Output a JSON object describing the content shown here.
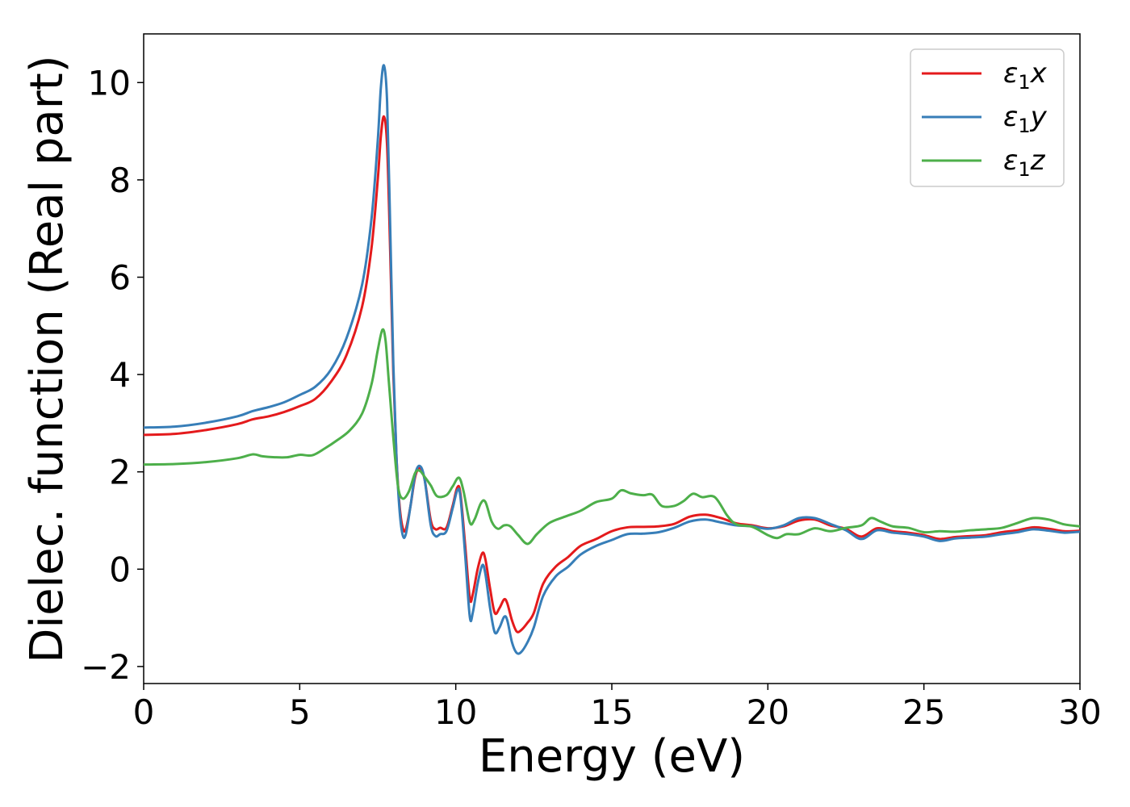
{
  "chart_data": {
    "type": "line",
    "xlabel": "Energy (eV)",
    "ylabel": "Dielec. function (Real part)",
    "xlim": [
      0,
      30
    ],
    "ylim": [
      -2.35,
      11.0
    ],
    "xticks": [
      0,
      5,
      10,
      15,
      20,
      25,
      30
    ],
    "xtick_labels": [
      "0",
      "5",
      "10",
      "15",
      "20",
      "25",
      "30"
    ],
    "yticks": [
      -2,
      0,
      2,
      4,
      6,
      8,
      10
    ],
    "ytick_labels": [
      "−2",
      "0",
      "2",
      "4",
      "6",
      "8",
      "10"
    ],
    "grid": false,
    "legend_position": "top-right",
    "series": [
      {
        "name": "ε₁x",
        "legend_main": "ε",
        "legend_sub": "1",
        "legend_tail": "x",
        "color": "#e41a1c",
        "points": [
          [
            0,
            2.76
          ],
          [
            1,
            2.78
          ],
          [
            2,
            2.86
          ],
          [
            3,
            2.98
          ],
          [
            3.5,
            3.08
          ],
          [
            4,
            3.14
          ],
          [
            4.5,
            3.23
          ],
          [
            5,
            3.35
          ],
          [
            5.5,
            3.5
          ],
          [
            6,
            3.85
          ],
          [
            6.5,
            4.4
          ],
          [
            7,
            5.4
          ],
          [
            7.3,
            6.6
          ],
          [
            7.5,
            8.0
          ],
          [
            7.6,
            8.9
          ],
          [
            7.7,
            9.3
          ],
          [
            7.8,
            8.7
          ],
          [
            7.9,
            6.5
          ],
          [
            8.0,
            4.0
          ],
          [
            8.1,
            2.3
          ],
          [
            8.2,
            1.3
          ],
          [
            8.3,
            0.85
          ],
          [
            8.4,
            0.82
          ],
          [
            8.55,
            1.3
          ],
          [
            8.7,
            1.9
          ],
          [
            8.85,
            2.08
          ],
          [
            9.0,
            1.85
          ],
          [
            9.2,
            1.0
          ],
          [
            9.35,
            0.82
          ],
          [
            9.5,
            0.85
          ],
          [
            9.7,
            0.85
          ],
          [
            9.9,
            1.3
          ],
          [
            10.05,
            1.68
          ],
          [
            10.15,
            1.55
          ],
          [
            10.3,
            0.5
          ],
          [
            10.45,
            -0.6
          ],
          [
            10.55,
            -0.5
          ],
          [
            10.7,
            0.0
          ],
          [
            10.85,
            0.33
          ],
          [
            10.95,
            0.2
          ],
          [
            11.1,
            -0.4
          ],
          [
            11.25,
            -0.9
          ],
          [
            11.4,
            -0.8
          ],
          [
            11.55,
            -0.62
          ],
          [
            11.65,
            -0.7
          ],
          [
            11.8,
            -1.05
          ],
          [
            11.95,
            -1.28
          ],
          [
            12.1,
            -1.25
          ],
          [
            12.3,
            -1.1
          ],
          [
            12.5,
            -0.9
          ],
          [
            12.8,
            -0.3
          ],
          [
            13.2,
            0.05
          ],
          [
            13.6,
            0.25
          ],
          [
            14.0,
            0.48
          ],
          [
            14.5,
            0.62
          ],
          [
            15.0,
            0.78
          ],
          [
            15.5,
            0.86
          ],
          [
            16.0,
            0.87
          ],
          [
            16.5,
            0.88
          ],
          [
            17.0,
            0.93
          ],
          [
            17.5,
            1.08
          ],
          [
            18.0,
            1.12
          ],
          [
            18.5,
            1.05
          ],
          [
            19.0,
            0.94
          ],
          [
            19.5,
            0.9
          ],
          [
            20.0,
            0.84
          ],
          [
            20.5,
            0.88
          ],
          [
            21.0,
            1.0
          ],
          [
            21.5,
            1.02
          ],
          [
            22.0,
            0.9
          ],
          [
            22.5,
            0.83
          ],
          [
            23.0,
            0.67
          ],
          [
            23.5,
            0.84
          ],
          [
            24.0,
            0.78
          ],
          [
            24.5,
            0.75
          ],
          [
            25.0,
            0.7
          ],
          [
            25.5,
            0.62
          ],
          [
            26.0,
            0.66
          ],
          [
            26.5,
            0.68
          ],
          [
            27.0,
            0.7
          ],
          [
            27.5,
            0.76
          ],
          [
            28.0,
            0.8
          ],
          [
            28.5,
            0.86
          ],
          [
            29.0,
            0.83
          ],
          [
            29.5,
            0.78
          ],
          [
            30.0,
            0.79
          ]
        ]
      },
      {
        "name": "ε₁y",
        "legend_main": "ε",
        "legend_sub": "1",
        "legend_tail": "y",
        "color": "#377eb8",
        "points": [
          [
            0,
            2.91
          ],
          [
            1,
            2.93
          ],
          [
            2,
            3.01
          ],
          [
            3,
            3.14
          ],
          [
            3.5,
            3.25
          ],
          [
            4,
            3.33
          ],
          [
            4.5,
            3.43
          ],
          [
            5,
            3.58
          ],
          [
            5.5,
            3.75
          ],
          [
            6,
            4.1
          ],
          [
            6.5,
            4.75
          ],
          [
            7,
            5.85
          ],
          [
            7.3,
            7.2
          ],
          [
            7.5,
            8.8
          ],
          [
            7.6,
            9.9
          ],
          [
            7.7,
            10.35
          ],
          [
            7.8,
            9.6
          ],
          [
            7.9,
            7.0
          ],
          [
            8.0,
            4.2
          ],
          [
            8.1,
            2.3
          ],
          [
            8.2,
            1.2
          ],
          [
            8.3,
            0.7
          ],
          [
            8.4,
            0.72
          ],
          [
            8.55,
            1.3
          ],
          [
            8.7,
            1.95
          ],
          [
            8.85,
            2.12
          ],
          [
            9.0,
            1.85
          ],
          [
            9.2,
            0.9
          ],
          [
            9.35,
            0.68
          ],
          [
            9.5,
            0.72
          ],
          [
            9.7,
            0.78
          ],
          [
            9.9,
            1.25
          ],
          [
            10.05,
            1.62
          ],
          [
            10.15,
            1.48
          ],
          [
            10.3,
            0.3
          ],
          [
            10.45,
            -0.98
          ],
          [
            10.55,
            -0.88
          ],
          [
            10.7,
            -0.3
          ],
          [
            10.85,
            0.08
          ],
          [
            10.95,
            -0.1
          ],
          [
            11.1,
            -0.8
          ],
          [
            11.25,
            -1.3
          ],
          [
            11.4,
            -1.2
          ],
          [
            11.55,
            -0.98
          ],
          [
            11.65,
            -1.05
          ],
          [
            11.8,
            -1.5
          ],
          [
            11.95,
            -1.72
          ],
          [
            12.1,
            -1.7
          ],
          [
            12.3,
            -1.5
          ],
          [
            12.5,
            -1.2
          ],
          [
            12.8,
            -0.55
          ],
          [
            13.2,
            -0.15
          ],
          [
            13.6,
            0.05
          ],
          [
            14.0,
            0.3
          ],
          [
            14.5,
            0.48
          ],
          [
            15.0,
            0.6
          ],
          [
            15.5,
            0.72
          ],
          [
            16.0,
            0.73
          ],
          [
            16.5,
            0.76
          ],
          [
            17.0,
            0.85
          ],
          [
            17.5,
            0.98
          ],
          [
            18.0,
            1.02
          ],
          [
            18.5,
            0.96
          ],
          [
            19.0,
            0.9
          ],
          [
            19.5,
            0.88
          ],
          [
            20.0,
            0.83
          ],
          [
            20.5,
            0.9
          ],
          [
            21.0,
            1.05
          ],
          [
            21.5,
            1.05
          ],
          [
            22.0,
            0.93
          ],
          [
            22.5,
            0.8
          ],
          [
            23.0,
            0.62
          ],
          [
            23.5,
            0.8
          ],
          [
            24.0,
            0.75
          ],
          [
            24.5,
            0.72
          ],
          [
            25.0,
            0.67
          ],
          [
            25.5,
            0.58
          ],
          [
            26.0,
            0.63
          ],
          [
            26.5,
            0.65
          ],
          [
            27.0,
            0.67
          ],
          [
            27.5,
            0.72
          ],
          [
            28.0,
            0.76
          ],
          [
            28.5,
            0.82
          ],
          [
            29.0,
            0.79
          ],
          [
            29.5,
            0.75
          ],
          [
            30.0,
            0.77
          ]
        ]
      },
      {
        "name": "ε₁z",
        "legend_main": "ε",
        "legend_sub": "1",
        "legend_tail": "z",
        "color": "#4daf4a",
        "points": [
          [
            0,
            2.15
          ],
          [
            1,
            2.16
          ],
          [
            2,
            2.2
          ],
          [
            3,
            2.28
          ],
          [
            3.5,
            2.36
          ],
          [
            3.8,
            2.32
          ],
          [
            4.2,
            2.3
          ],
          [
            4.6,
            2.3
          ],
          [
            5.0,
            2.35
          ],
          [
            5.4,
            2.34
          ],
          [
            5.8,
            2.48
          ],
          [
            6.2,
            2.65
          ],
          [
            6.6,
            2.85
          ],
          [
            7.0,
            3.2
          ],
          [
            7.3,
            3.8
          ],
          [
            7.5,
            4.5
          ],
          [
            7.65,
            4.92
          ],
          [
            7.75,
            4.7
          ],
          [
            7.85,
            3.9
          ],
          [
            8.0,
            2.7
          ],
          [
            8.15,
            1.7
          ],
          [
            8.3,
            1.45
          ],
          [
            8.5,
            1.6
          ],
          [
            8.7,
            1.98
          ],
          [
            8.85,
            2.02
          ],
          [
            9.0,
            1.9
          ],
          [
            9.2,
            1.72
          ],
          [
            9.4,
            1.5
          ],
          [
            9.7,
            1.52
          ],
          [
            9.9,
            1.7
          ],
          [
            10.1,
            1.88
          ],
          [
            10.25,
            1.6
          ],
          [
            10.45,
            0.96
          ],
          [
            10.6,
            1.02
          ],
          [
            10.8,
            1.35
          ],
          [
            10.95,
            1.38
          ],
          [
            11.15,
            0.98
          ],
          [
            11.35,
            0.83
          ],
          [
            11.55,
            0.9
          ],
          [
            11.75,
            0.88
          ],
          [
            12.0,
            0.7
          ],
          [
            12.3,
            0.52
          ],
          [
            12.6,
            0.72
          ],
          [
            13.0,
            0.95
          ],
          [
            13.5,
            1.08
          ],
          [
            14.0,
            1.2
          ],
          [
            14.5,
            1.38
          ],
          [
            15.0,
            1.45
          ],
          [
            15.3,
            1.62
          ],
          [
            15.6,
            1.56
          ],
          [
            16.0,
            1.52
          ],
          [
            16.3,
            1.53
          ],
          [
            16.6,
            1.3
          ],
          [
            17.0,
            1.3
          ],
          [
            17.3,
            1.4
          ],
          [
            17.6,
            1.55
          ],
          [
            17.9,
            1.48
          ],
          [
            18.3,
            1.48
          ],
          [
            18.7,
            1.1
          ],
          [
            19.0,
            0.92
          ],
          [
            19.5,
            0.87
          ],
          [
            20.0,
            0.7
          ],
          [
            20.3,
            0.64
          ],
          [
            20.6,
            0.72
          ],
          [
            21.0,
            0.72
          ],
          [
            21.5,
            0.84
          ],
          [
            22.0,
            0.78
          ],
          [
            22.5,
            0.85
          ],
          [
            23.0,
            0.9
          ],
          [
            23.3,
            1.05
          ],
          [
            23.6,
            0.98
          ],
          [
            24.0,
            0.88
          ],
          [
            24.5,
            0.85
          ],
          [
            25.0,
            0.76
          ],
          [
            25.5,
            0.78
          ],
          [
            26.0,
            0.77
          ],
          [
            26.5,
            0.8
          ],
          [
            27.0,
            0.82
          ],
          [
            27.5,
            0.85
          ],
          [
            28.0,
            0.95
          ],
          [
            28.5,
            1.05
          ],
          [
            29.0,
            1.02
          ],
          [
            29.5,
            0.92
          ],
          [
            30.0,
            0.88
          ]
        ]
      }
    ]
  }
}
